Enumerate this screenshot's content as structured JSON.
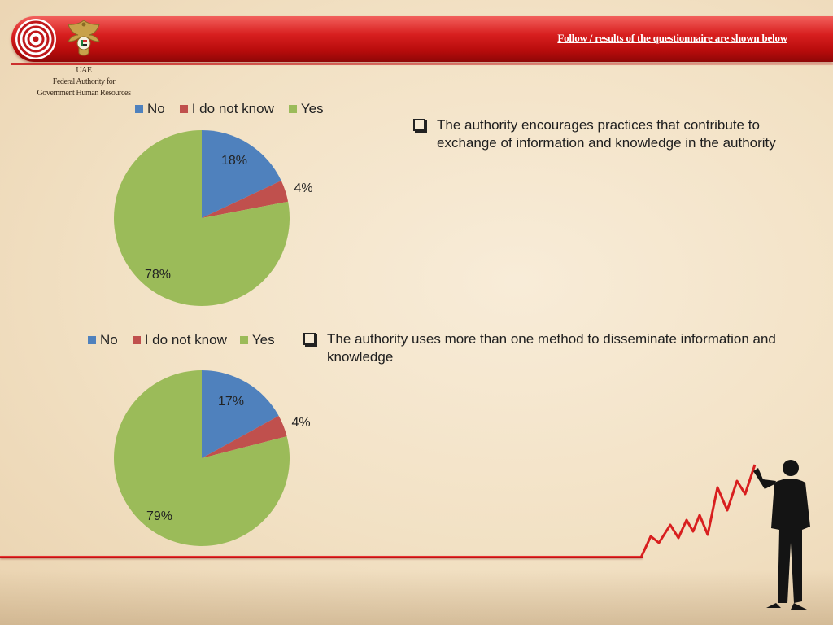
{
  "header": {
    "title": "Follow / results of the questionnaire are shown below"
  },
  "org": {
    "line1": "UAE",
    "line2": "Federal Authority for",
    "line3": "Government Human Resources"
  },
  "colors": {
    "no": "#4f81bd",
    "dont_know": "#c0504d",
    "yes": "#9bbb59"
  },
  "icons": {
    "rings_logo": "concentric-rings-logo",
    "emblem": "uae-emblem",
    "bullet": "checkbox-bullet-icon",
    "figure": "businessman-silhouette"
  },
  "chart_data": [
    {
      "type": "pie",
      "title": "",
      "legend_position": "top",
      "categories": [
        "No",
        "I do not know",
        "Yes"
      ],
      "values": [
        18,
        4,
        78
      ],
      "data_labels": [
        "18%",
        "4%",
        "78%"
      ],
      "question": "The authority encourages practices that contribute to exchange of information and knowledge in the authority"
    },
    {
      "type": "pie",
      "title": "",
      "legend_position": "top",
      "categories": [
        "No",
        "I do not know",
        "Yes"
      ],
      "values": [
        17,
        4,
        79
      ],
      "data_labels": [
        "17%",
        "4%",
        "79%"
      ],
      "question": "The authority uses more than one method to disseminate information and knowledge"
    }
  ]
}
